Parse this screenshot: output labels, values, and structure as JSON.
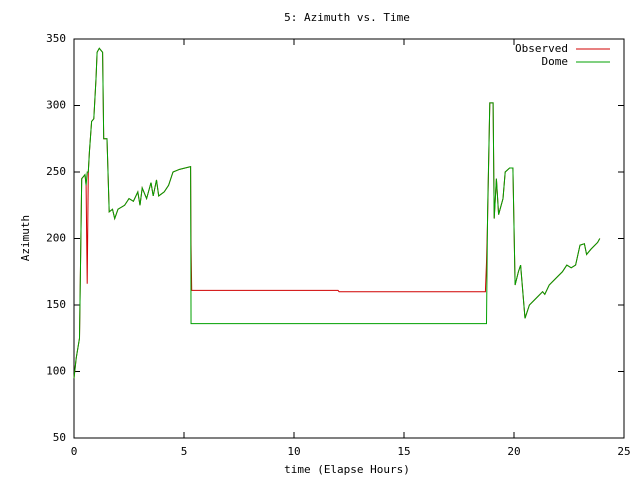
{
  "chart_data": {
    "type": "line",
    "title": "5: Azimuth vs. Time",
    "x_label": "time (Elapse Hours)",
    "y_label": "Azimuth",
    "x": [
      0,
      0.1,
      0.25,
      0.35,
      0.5,
      0.55,
      0.6,
      0.65,
      0.7,
      0.8,
      0.9,
      1.0,
      1.05,
      1.15,
      1.3,
      1.35,
      1.5,
      1.6,
      1.75,
      1.85,
      2.0,
      2.3,
      2.5,
      2.7,
      2.9,
      3.0,
      3.1,
      3.3,
      3.5,
      3.6,
      3.75,
      3.85,
      4.1,
      4.3,
      4.5,
      4.8,
      5.3,
      5.32,
      5.35,
      12,
      12.05,
      18.7,
      18.75,
      18.8,
      18.9,
      19.05,
      19.1,
      19.2,
      19.3,
      19.5,
      19.6,
      19.8,
      19.95,
      20.05,
      20.2,
      20.3,
      20.5,
      20.7,
      21,
      21.3,
      21.4,
      21.6,
      21.9,
      22.2,
      22.4,
      22.6,
      22.8,
      23,
      23.2,
      23.3,
      23.5,
      23.8,
      23.9
    ],
    "series": [
      {
        "name": "Observed",
        "color": "#d00000",
        "values": [
          95,
          110,
          125,
          245,
          248,
          240,
          166,
          250,
          265,
          288,
          290,
          320,
          340,
          343,
          340,
          275,
          275,
          220,
          222,
          215,
          222,
          225,
          230,
          228,
          235,
          225,
          238,
          230,
          242,
          232,
          244,
          232,
          235,
          240,
          250,
          252,
          254,
          195,
          161,
          161,
          160,
          160,
          182,
          215,
          302,
          302,
          215,
          245,
          218,
          230,
          250,
          253,
          253,
          165,
          175,
          180,
          140,
          150,
          155,
          160,
          158,
          165,
          170,
          175,
          180,
          178,
          180,
          195,
          196,
          188,
          192,
          197,
          200
        ]
      },
      {
        "name": "Dome",
        "color": "#00a000",
        "values": [
          95,
          110,
          125,
          245,
          248,
          240,
          250,
          250,
          265,
          288,
          290,
          320,
          340,
          343,
          340,
          275,
          275,
          220,
          222,
          215,
          222,
          225,
          230,
          228,
          235,
          225,
          238,
          230,
          242,
          232,
          244,
          232,
          235,
          240,
          250,
          252,
          254,
          136,
          136,
          136,
          136,
          136,
          136,
          220,
          302,
          302,
          215,
          245,
          218,
          230,
          250,
          253,
          253,
          165,
          175,
          180,
          140,
          150,
          155,
          160,
          158,
          165,
          170,
          175,
          180,
          178,
          180,
          195,
          196,
          188,
          192,
          197,
          200
        ]
      }
    ],
    "xlim": [
      0,
      25
    ],
    "xticks": [
      0,
      5,
      10,
      15,
      20,
      25
    ],
    "ylim": [
      50,
      350
    ],
    "yticks": [
      50,
      100,
      150,
      200,
      250,
      300,
      350
    ],
    "legend": "top-right"
  }
}
